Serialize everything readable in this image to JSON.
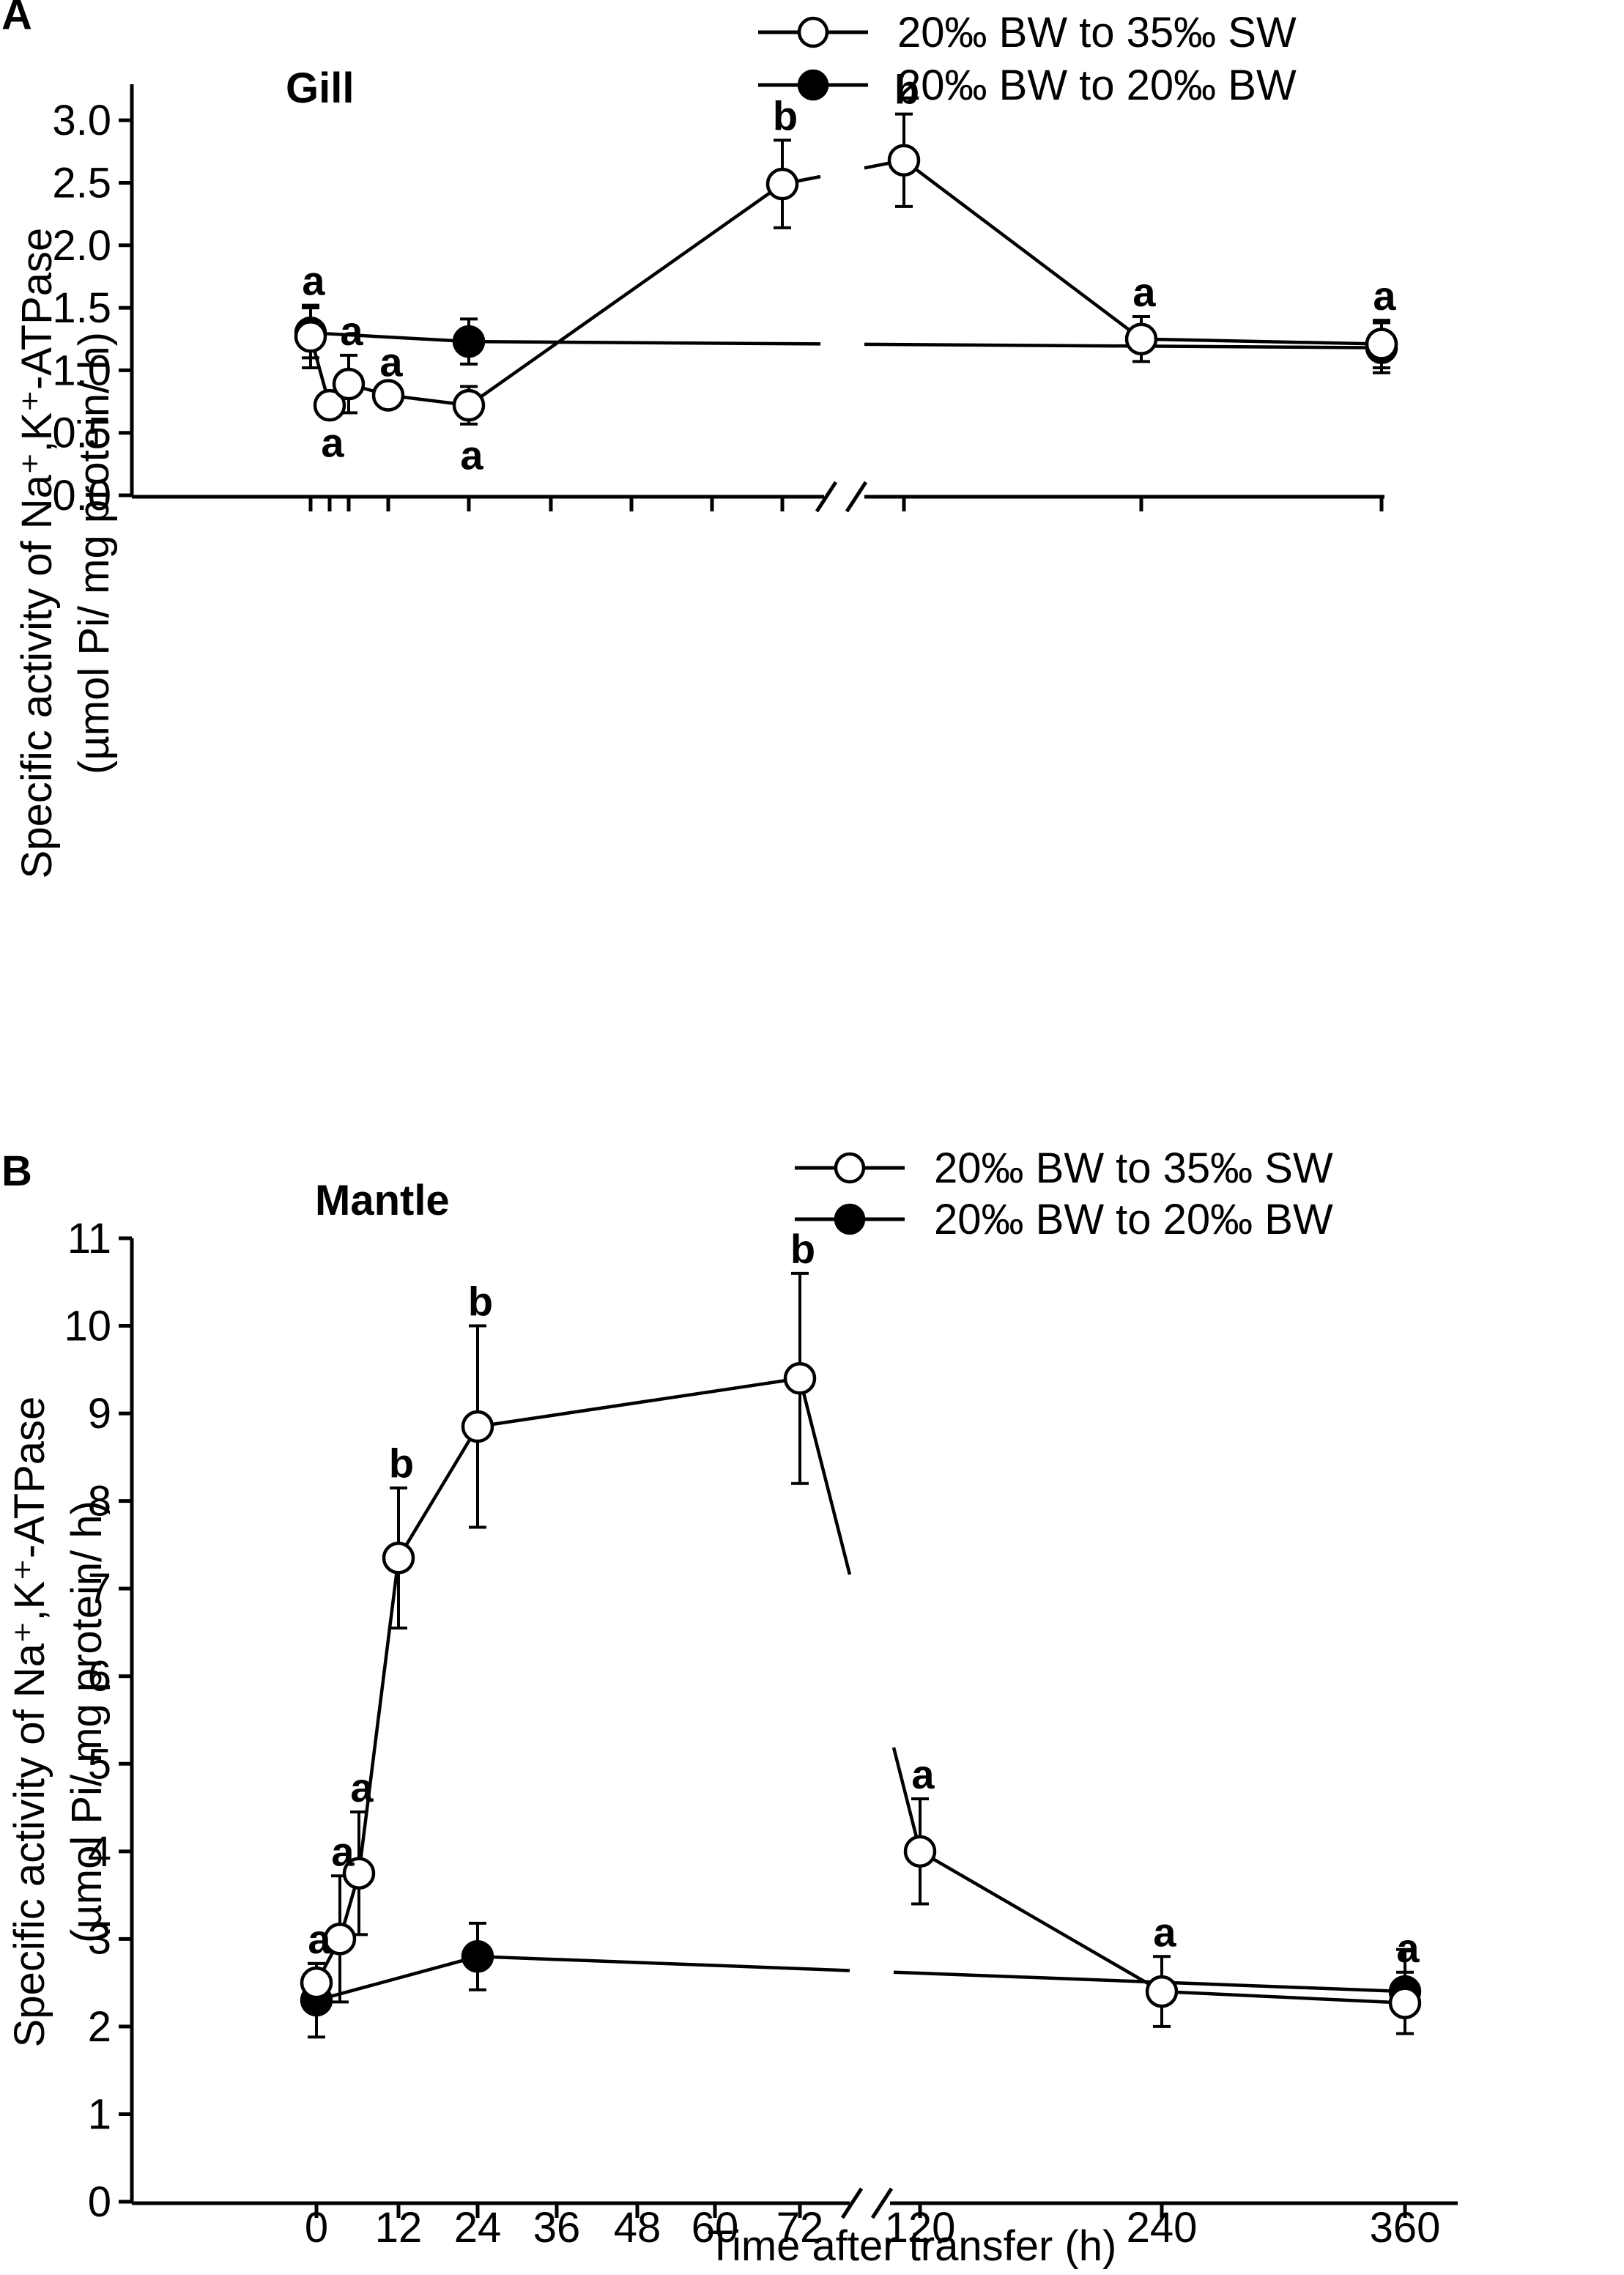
{
  "chart_data": [
    {
      "panel": "A",
      "type": "line",
      "title": "Gill",
      "ylabel_line1": "Specific activity of Na⁺,K⁺-ATPase",
      "ylabel_line2": "(µmol Pi/ mg protein/ h)",
      "xlabel": "",
      "ylim": [
        0,
        3.2
      ],
      "yticks": [
        "0.0",
        "0.5",
        "1.0",
        "1.5",
        "2.0",
        "2.5",
        "3.0"
      ],
      "ytick_values": [
        0,
        0.5,
        1.0,
        1.5,
        2.0,
        2.5,
        3.0
      ],
      "xticks": [
        0,
        3,
        6,
        12,
        24,
        36,
        48,
        60,
        72,
        120,
        240,
        360
      ],
      "xtick_labels_shown": false,
      "legend": {
        "position": "top-right",
        "entries": [
          "20‰ BW to 35‰ SW",
          "20‰ BW to 20‰ BW"
        ]
      },
      "series": [
        {
          "name": "20‰ BW to 35‰ SW",
          "marker": "open-circle",
          "x": [
            0,
            3,
            6,
            12,
            24,
            72,
            120,
            240,
            360
          ],
          "values": [
            1.27,
            0.72,
            0.89,
            0.8,
            0.72,
            2.49,
            2.68,
            1.25,
            1.21
          ],
          "errors": [
            0.25,
            0.05,
            0.23,
            0.07,
            0.15,
            0.35,
            0.37,
            0.18,
            0.19
          ],
          "labels": [
            "a",
            "a",
            "a",
            "a",
            "a",
            "b",
            "b",
            "a",
            "a"
          ],
          "label_side": [
            "above",
            "below",
            "above",
            "above",
            "below",
            "above",
            "above",
            "above",
            "above"
          ]
        },
        {
          "name": "20‰ BW to 20‰ BW",
          "marker": "filled-circle",
          "x": [
            0,
            24,
            360
          ],
          "values": [
            1.3,
            1.23,
            1.18
          ],
          "errors": [
            0.2,
            0.18,
            0.2
          ]
        }
      ]
    },
    {
      "panel": "B",
      "type": "line",
      "title": "Mantle",
      "ylabel_line1": "Specific activity of Na⁺,K⁺-ATPase",
      "ylabel_line2": "(µmol Pi/ mg protein/ h)",
      "xlabel": "Time after transfer (h)",
      "ylim": [
        0,
        11
      ],
      "yticks": [
        "0",
        "1",
        "2",
        "3",
        "4",
        "5",
        "6",
        "7",
        "8",
        "9",
        "10",
        "11"
      ],
      "ytick_values": [
        0,
        1,
        2,
        3,
        4,
        5,
        6,
        7,
        8,
        9,
        10,
        11
      ],
      "xticks": [
        0,
        12,
        24,
        36,
        48,
        60,
        72,
        120,
        240,
        360
      ],
      "xtick_labels": [
        "0",
        "12",
        "24",
        "36",
        "48",
        "60",
        "72",
        "120",
        "240",
        "360"
      ],
      "xtick_labels_shown": true,
      "legend": {
        "position": "top-right",
        "entries": [
          "20‰ BW to 35‰ SW",
          "20‰ BW to 20‰ BW"
        ]
      },
      "series": [
        {
          "name": "20‰ BW to 35‰ SW",
          "marker": "open-circle",
          "x": [
            0,
            3,
            6,
            12,
            24,
            72,
            120,
            240,
            360
          ],
          "values": [
            2.5,
            3.0,
            3.75,
            7.35,
            8.85,
            9.4,
            4.0,
            2.4,
            2.27
          ],
          "errors": [
            0.22,
            0.72,
            0.7,
            0.8,
            1.15,
            1.2,
            0.6,
            0.4,
            0.35
          ],
          "labels": [
            "a",
            "a",
            "a",
            "b",
            "b",
            "b",
            "a",
            "a",
            "a"
          ],
          "label_side": [
            "above",
            "above",
            "above",
            "above",
            "above",
            "above",
            "above",
            "above",
            "above"
          ]
        },
        {
          "name": "20‰ BW to 20‰ BW",
          "marker": "filled-circle",
          "x": [
            0,
            24,
            360
          ],
          "values": [
            2.3,
            2.8,
            2.4
          ],
          "errors": [
            0.42,
            0.38,
            0.48
          ]
        }
      ]
    }
  ]
}
